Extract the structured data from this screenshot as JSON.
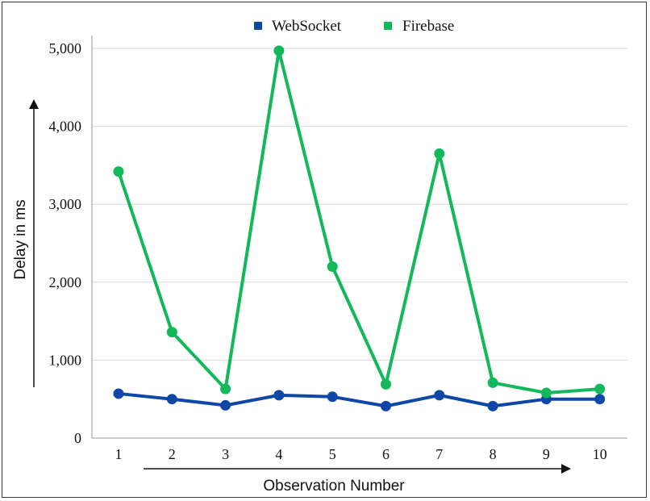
{
  "chart_data": {
    "type": "line",
    "title": "",
    "xlabel": "Observation Number",
    "ylabel": "Delay in ms",
    "categories": [
      "1",
      "2",
      "3",
      "4",
      "5",
      "6",
      "7",
      "8",
      "9",
      "10"
    ],
    "ylim": [
      0,
      5000
    ],
    "yticks": [
      0,
      1000,
      2000,
      3000,
      4000,
      5000
    ],
    "ytick_labels": [
      "0",
      "1,000",
      "2,000",
      "3,000",
      "4,000",
      "5,000"
    ],
    "grid": "horizontal",
    "legend_position": "top-center",
    "series": [
      {
        "name": "WebSocket",
        "color": "#0f47a6",
        "values": [
          570,
          500,
          420,
          550,
          530,
          410,
          550,
          410,
          500,
          500
        ]
      },
      {
        "name": "Firebase",
        "color": "#12b85a",
        "values": [
          3420,
          1360,
          630,
          4970,
          2200,
          690,
          3650,
          710,
          580,
          630
        ]
      }
    ]
  }
}
